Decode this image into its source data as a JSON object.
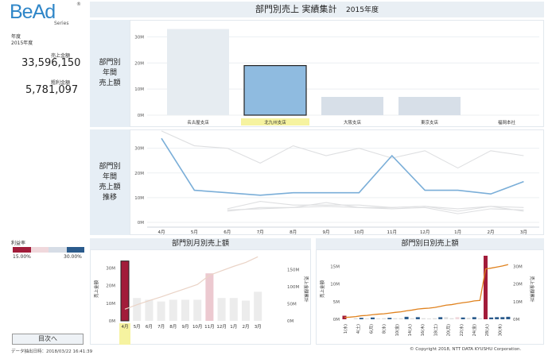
{
  "logo": {
    "text": "BeAd",
    "reg": "®",
    "sub": "Series"
  },
  "sidebar": {
    "year_label": "年度",
    "year_value": "2015年度",
    "sales_label": "売上金額",
    "sales_value": "33,596,150",
    "profit_label": "粗利金額",
    "profit_value": "5,781,097",
    "margin_label": "利益率",
    "margin_min": "15.00%",
    "margin_max": "30.00%",
    "next_button": "目次へ"
  },
  "header": {
    "title": "部門別売上 実績集計",
    "year": "2015年度"
  },
  "row1_label": [
    "部門別",
    "年間",
    "売上額"
  ],
  "row2_label": [
    "部門別",
    "年間",
    "売上額",
    "推移"
  ],
  "month_title": "部門別月別売上額",
  "day_title": "部門別日別売上額",
  "footer": {
    "extract": "データ抽出日時：2018/03/22 16:41:39",
    "copyright": "© Copyright 2018, NTT DATA KYUSHU Corporation."
  },
  "colors": {
    "accent": "#8fbbe0",
    "selected": "#a21c3a",
    "highlight": "#f6f3a0",
    "line": "#e0821e"
  },
  "chart_data": [
    {
      "type": "bar",
      "title": "部門別 年間 売上額",
      "categories": [
        "名古屋支店",
        "北九州支店",
        "大阪支店",
        "東京支店",
        "福岡本社"
      ],
      "values": [
        33,
        19,
        7,
        7,
        0
      ],
      "selected": "北九州支店",
      "yticks": [
        "0M",
        "10M",
        "20M",
        "30M"
      ],
      "ylim": [
        0,
        35
      ]
    },
    {
      "type": "line",
      "title": "部門別 年間 売上額 推移",
      "categories": [
        "4月",
        "5月",
        "6月",
        "7月",
        "8月",
        "9月",
        "10月",
        "11月",
        "12月",
        "1月",
        "2月",
        "3月"
      ],
      "yticks": [
        "0M",
        "10M",
        "20M",
        "30M"
      ],
      "ylim": [
        0,
        36
      ],
      "series": [
        {
          "values": [
            34,
            13,
            12,
            11,
            12,
            12,
            12,
            27,
            13,
            13,
            11.5,
            16.5
          ],
          "highlight": true
        },
        {
          "values": [
            37,
            31,
            30,
            24,
            31,
            27,
            30,
            26,
            29,
            22,
            29,
            27
          ],
          "highlight": false
        },
        {
          "values": [
            null,
            null,
            5.5,
            8.5,
            7,
            7,
            7,
            6,
            6.5,
            5.5,
            6.5,
            6
          ],
          "highlight": false
        },
        {
          "values": [
            null,
            null,
            5,
            5.5,
            6,
            6.5,
            6,
            5.5,
            6,
            3.5,
            5.5,
            5
          ],
          "highlight": false
        },
        {
          "values": [
            null,
            null,
            4.5,
            6,
            6,
            8,
            6,
            6,
            6.5,
            4.5,
            6.5,
            4.5
          ],
          "highlight": false
        }
      ]
    },
    {
      "type": "bar",
      "title": "部門別月別売上額",
      "categories": [
        "4月",
        "5月",
        "6月",
        "7月",
        "8月",
        "9月",
        "10月",
        "11月",
        "12月",
        "1月",
        "2月",
        "3月"
      ],
      "values": [
        34,
        13,
        12,
        11,
        12,
        12,
        12,
        27,
        13,
        13,
        11.5,
        16.5
      ],
      "cumulative": [
        34,
        47,
        59,
        70,
        82,
        94,
        106,
        133,
        146,
        159,
        170.5,
        187
      ],
      "ylabel": "売上金額",
      "y2label": "売上金額累計",
      "yticks": [
        "0M",
        "10M",
        "20M",
        "30M"
      ],
      "y2ticks": [
        "0M",
        "50M",
        "100M",
        "150M"
      ],
      "selected": "4月"
    },
    {
      "type": "bar",
      "title": "部門別日別売上額",
      "categories": [
        "1(水)",
        "4(土)",
        "6(月)",
        "8(水)",
        "10(金)",
        "14(火)",
        "16(木)",
        "18(土)",
        "20(月)",
        "22(水)",
        "24(金)",
        "28(火)",
        "30(木)"
      ],
      "ylabel": "売上金額",
      "y2label": "売上金額累計",
      "yticks": [
        "0M",
        "5M",
        "10M",
        "15M"
      ],
      "y2ticks": [
        "0M",
        "10M",
        "20M",
        "30M"
      ]
    }
  ]
}
